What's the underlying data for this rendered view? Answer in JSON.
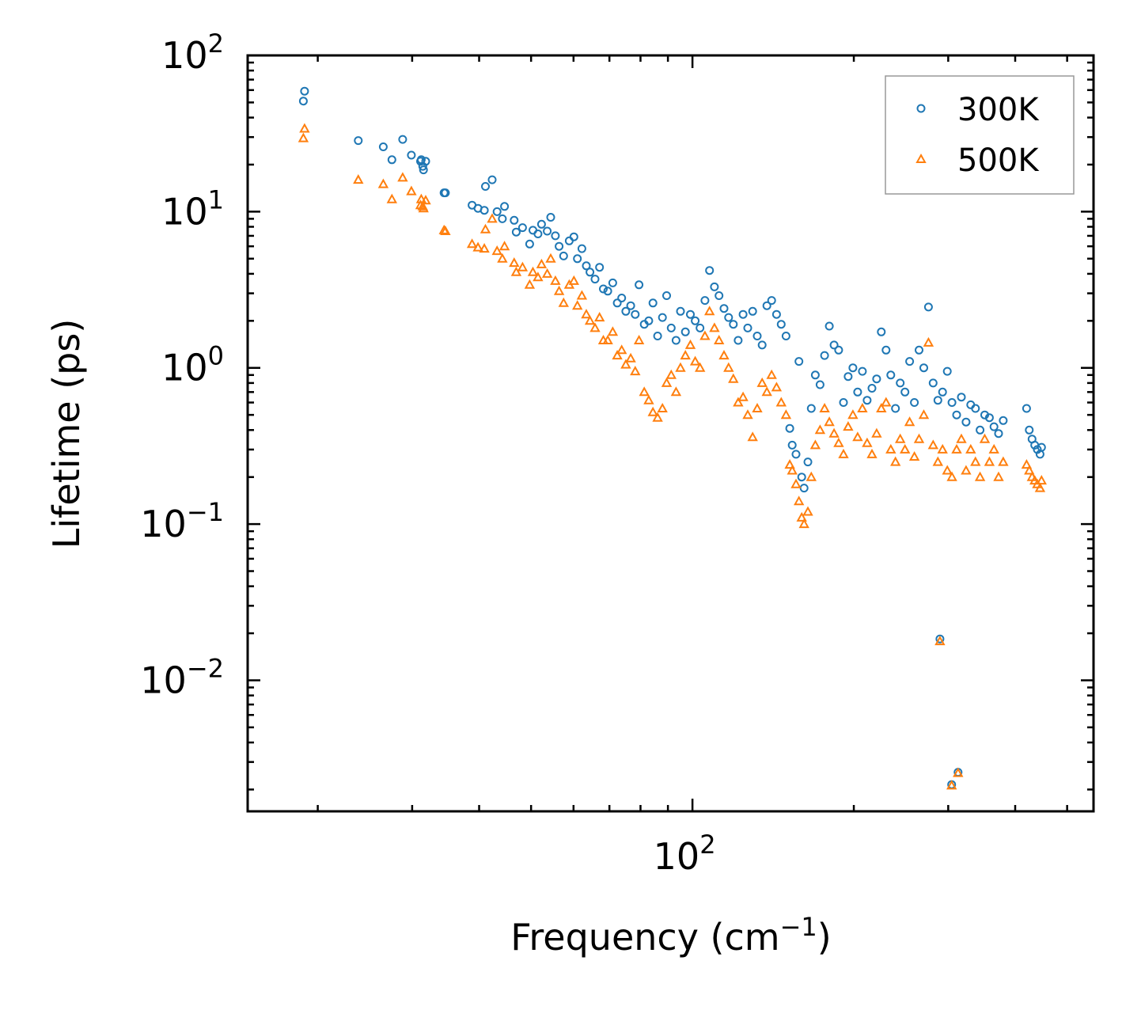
{
  "chart_data": {
    "type": "scatter",
    "xscale": "log",
    "yscale": "log",
    "xlabel": "Frequency (cm",
    "xlabel_sup": "−1",
    "xlabel_end": ")",
    "ylabel": "Lifetime (ps)",
    "xlim": [
      14.8,
      560
    ],
    "ylim": [
      0.00145,
      100
    ],
    "x_tick_labels": [
      {
        "value": 100,
        "base": "10",
        "exp": "2"
      }
    ],
    "y_tick_labels": [
      {
        "value": 100,
        "base": "10",
        "exp": "2"
      },
      {
        "value": 10,
        "base": "10",
        "exp": "1"
      },
      {
        "value": 1,
        "base": "10",
        "exp": "0"
      },
      {
        "value": 0.1,
        "base": "10",
        "exp": "−1"
      },
      {
        "value": 0.01,
        "base": "10",
        "exp": "−2"
      }
    ],
    "legend": {
      "position": "top-right"
    },
    "series": [
      {
        "name": "300K",
        "marker": "circle",
        "color": "#1f77b4",
        "points": [
          [
            18.9,
            59
          ],
          [
            18.8,
            51
          ],
          [
            23.8,
            28.5
          ],
          [
            26.5,
            26
          ],
          [
            27.5,
            21.5
          ],
          [
            28.8,
            29
          ],
          [
            29.9,
            23
          ],
          [
            31.1,
            21
          ],
          [
            31.2,
            21.5
          ],
          [
            31.4,
            19.5
          ],
          [
            31.5,
            18.5
          ],
          [
            31.8,
            21
          ],
          [
            34.4,
            13.2
          ],
          [
            34.6,
            13.2
          ],
          [
            38.8,
            11
          ],
          [
            39.8,
            10.5
          ],
          [
            40.9,
            10.2
          ],
          [
            41.1,
            14.5
          ],
          [
            42.3,
            16
          ],
          [
            43.2,
            10
          ],
          [
            44.2,
            9
          ],
          [
            44.6,
            10.8
          ],
          [
            46.5,
            8.8
          ],
          [
            46.9,
            7.4
          ],
          [
            48.2,
            7.9
          ],
          [
            49.7,
            6.2
          ],
          [
            50.4,
            7.6
          ],
          [
            51.5,
            7.2
          ],
          [
            52.3,
            8.3
          ],
          [
            53.6,
            7.5
          ],
          [
            54.4,
            9.2
          ],
          [
            55.5,
            7.0
          ],
          [
            56.4,
            6.0
          ],
          [
            57.5,
            5.2
          ],
          [
            58.9,
            6.5
          ],
          [
            60.1,
            6.9
          ],
          [
            61.0,
            5.0
          ],
          [
            62.2,
            5.8
          ],
          [
            63.4,
            4.5
          ],
          [
            64.4,
            4.1
          ],
          [
            65.8,
            3.7
          ],
          [
            67.1,
            4.4
          ],
          [
            68.2,
            3.2
          ],
          [
            69.5,
            3.1
          ],
          [
            71.0,
            3.5
          ],
          [
            72.4,
            2.6
          ],
          [
            73.8,
            2.8
          ],
          [
            75.1,
            2.3
          ],
          [
            76.7,
            2.5
          ],
          [
            78.2,
            2.2
          ],
          [
            79.5,
            3.4
          ],
          [
            81.3,
            1.9
          ],
          [
            82.9,
            2.0
          ],
          [
            84.4,
            2.6
          ],
          [
            86.1,
            1.6
          ],
          [
            87.9,
            2.1
          ],
          [
            89.5,
            2.9
          ],
          [
            91.3,
            1.8
          ],
          [
            93.2,
            1.5
          ],
          [
            95.0,
            2.3
          ],
          [
            97.0,
            1.7
          ],
          [
            99.1,
            2.2
          ],
          [
            101.2,
            2.0
          ],
          [
            103.3,
            1.8
          ],
          [
            105.5,
            2.7
          ],
          [
            107.6,
            4.2
          ],
          [
            109.9,
            3.3
          ],
          [
            112.1,
            2.9
          ],
          [
            114.5,
            2.4
          ],
          [
            116.8,
            2.1
          ],
          [
            119.2,
            1.9
          ],
          [
            121.7,
            1.5
          ],
          [
            124.3,
            2.2
          ],
          [
            126.8,
            1.8
          ],
          [
            129.5,
            2.3
          ],
          [
            132.1,
            1.6
          ],
          [
            134.9,
            1.4
          ],
          [
            137.7,
            2.5
          ],
          [
            140.5,
            2.7
          ],
          [
            143.5,
            2.2
          ],
          [
            146.4,
            1.9
          ],
          [
            149.5,
            1.6
          ],
          [
            151.9,
            0.41
          ],
          [
            153.5,
            0.32
          ],
          [
            156.0,
            0.28
          ],
          [
            158.0,
            1.1
          ],
          [
            159.9,
            0.2
          ],
          [
            161.5,
            0.17
          ],
          [
            164.2,
            0.25
          ],
          [
            166.6,
            0.55
          ],
          [
            169.5,
            0.9
          ],
          [
            173.0,
            0.78
          ],
          [
            176.4,
            1.2
          ],
          [
            180.0,
            1.85
          ],
          [
            183.7,
            1.4
          ],
          [
            187.4,
            1.3
          ],
          [
            191.3,
            0.6
          ],
          [
            195.2,
            0.88
          ],
          [
            199.2,
            1.0
          ],
          [
            203.3,
            0.7
          ],
          [
            207.5,
            0.95
          ],
          [
            211.8,
            0.62
          ],
          [
            216.2,
            0.74
          ],
          [
            220.6,
            0.85
          ],
          [
            225.1,
            1.7
          ],
          [
            229.7,
            1.3
          ],
          [
            234.4,
            0.9
          ],
          [
            239.2,
            0.55
          ],
          [
            244.1,
            0.8
          ],
          [
            249.1,
            0.7
          ],
          [
            254.2,
            1.1
          ],
          [
            259.4,
            0.6
          ],
          [
            264.7,
            1.3
          ],
          [
            270.1,
            1.0
          ],
          [
            275.6,
            2.45
          ],
          [
            281.2,
            0.8
          ],
          [
            287.0,
            0.62
          ],
          [
            292.8,
            0.7
          ],
          [
            298.8,
            0.95
          ],
          [
            304.9,
            0.6
          ],
          [
            311.1,
            0.5
          ],
          [
            317.5,
            0.65
          ],
          [
            323.9,
            0.45
          ],
          [
            330.5,
            0.58
          ],
          [
            337.2,
            0.55
          ],
          [
            344.0,
            0.4
          ],
          [
            350.9,
            0.5
          ],
          [
            358.0,
            0.48
          ],
          [
            365.2,
            0.42
          ],
          [
            372.5,
            0.38
          ],
          [
            380.0,
            0.46
          ],
          [
            420.0,
            0.55
          ],
          [
            425.0,
            0.4
          ],
          [
            430.0,
            0.35
          ],
          [
            435.0,
            0.32
          ],
          [
            440.0,
            0.3
          ],
          [
            445.0,
            0.28
          ],
          [
            448.0,
            0.31
          ],
          [
            289.5,
            0.0184
          ],
          [
            304.5,
            0.00215
          ],
          [
            313.0,
            0.00258
          ]
        ]
      },
      {
        "name": "500K",
        "marker": "triangle",
        "color": "#ff7f0e",
        "points": [
          [
            18.9,
            34
          ],
          [
            18.8,
            29.5
          ],
          [
            23.8,
            16
          ],
          [
            26.5,
            15
          ],
          [
            27.5,
            12
          ],
          [
            28.8,
            16.5
          ],
          [
            29.9,
            13.5
          ],
          [
            31.1,
            11
          ],
          [
            31.2,
            12
          ],
          [
            31.4,
            10.8
          ],
          [
            31.5,
            10.5
          ],
          [
            31.8,
            11.8
          ],
          [
            34.4,
            7.6
          ],
          [
            34.6,
            7.5
          ],
          [
            38.8,
            6.2
          ],
          [
            39.8,
            5.9
          ],
          [
            40.9,
            5.8
          ],
          [
            41.1,
            7.7
          ],
          [
            42.3,
            9.0
          ],
          [
            43.2,
            5.6
          ],
          [
            44.2,
            5.0
          ],
          [
            44.6,
            6.0
          ],
          [
            46.5,
            4.7
          ],
          [
            46.9,
            4.1
          ],
          [
            48.2,
            4.4
          ],
          [
            49.7,
            3.4
          ],
          [
            50.4,
            4.1
          ],
          [
            51.5,
            3.8
          ],
          [
            52.3,
            4.6
          ],
          [
            53.6,
            4.0
          ],
          [
            54.4,
            5.0
          ],
          [
            55.5,
            3.6
          ],
          [
            56.4,
            3.1
          ],
          [
            57.5,
            2.6
          ],
          [
            58.9,
            3.4
          ],
          [
            60.1,
            3.6
          ],
          [
            61.0,
            2.5
          ],
          [
            62.2,
            2.9
          ],
          [
            63.4,
            2.2
          ],
          [
            64.4,
            2.0
          ],
          [
            65.8,
            1.8
          ],
          [
            67.1,
            2.1
          ],
          [
            68.2,
            1.5
          ],
          [
            69.5,
            1.5
          ],
          [
            71.0,
            1.7
          ],
          [
            72.4,
            1.2
          ],
          [
            73.8,
            1.3
          ],
          [
            75.1,
            1.05
          ],
          [
            76.7,
            1.15
          ],
          [
            78.2,
            0.95
          ],
          [
            79.5,
            1.5
          ],
          [
            81.3,
            0.7
          ],
          [
            82.9,
            0.62
          ],
          [
            84.4,
            0.52
          ],
          [
            86.1,
            0.48
          ],
          [
            87.9,
            0.55
          ],
          [
            89.5,
            0.8
          ],
          [
            91.3,
            0.9
          ],
          [
            93.2,
            0.7
          ],
          [
            95.0,
            1.0
          ],
          [
            97.0,
            1.2
          ],
          [
            99.1,
            1.4
          ],
          [
            101.2,
            1.1
          ],
          [
            103.3,
            1.0
          ],
          [
            105.5,
            1.6
          ],
          [
            107.6,
            2.3
          ],
          [
            109.9,
            1.8
          ],
          [
            112.1,
            1.5
          ],
          [
            114.5,
            1.2
          ],
          [
            116.8,
            1.0
          ],
          [
            119.2,
            0.85
          ],
          [
            121.7,
            0.6
          ],
          [
            124.3,
            0.65
          ],
          [
            126.8,
            0.5
          ],
          [
            129.5,
            0.36
          ],
          [
            132.1,
            0.55
          ],
          [
            134.9,
            0.8
          ],
          [
            137.7,
            0.7
          ],
          [
            140.5,
            0.9
          ],
          [
            143.5,
            0.75
          ],
          [
            146.4,
            0.6
          ],
          [
            149.5,
            0.5
          ],
          [
            151.9,
            0.24
          ],
          [
            153.5,
            0.22
          ],
          [
            156.0,
            0.18
          ],
          [
            158.0,
            0.14
          ],
          [
            159.9,
            0.11
          ],
          [
            161.5,
            0.1
          ],
          [
            164.2,
            0.12
          ],
          [
            166.6,
            0.2
          ],
          [
            169.5,
            0.32
          ],
          [
            173.0,
            0.4
          ],
          [
            176.4,
            0.55
          ],
          [
            180.0,
            0.45
          ],
          [
            183.7,
            0.38
          ],
          [
            187.4,
            0.33
          ],
          [
            191.3,
            0.28
          ],
          [
            195.2,
            0.42
          ],
          [
            199.2,
            0.5
          ],
          [
            203.3,
            0.36
          ],
          [
            207.5,
            0.55
          ],
          [
            211.8,
            0.33
          ],
          [
            216.2,
            0.28
          ],
          [
            220.6,
            0.38
          ],
          [
            225.1,
            0.55
          ],
          [
            229.7,
            0.6
          ],
          [
            234.4,
            0.3
          ],
          [
            239.2,
            0.25
          ],
          [
            244.1,
            0.35
          ],
          [
            249.1,
            0.3
          ],
          [
            254.2,
            0.45
          ],
          [
            259.4,
            0.27
          ],
          [
            264.7,
            0.35
          ],
          [
            270.1,
            0.5
          ],
          [
            275.6,
            1.45
          ],
          [
            281.2,
            0.32
          ],
          [
            287.0,
            0.25
          ],
          [
            292.8,
            0.3
          ],
          [
            298.8,
            0.22
          ],
          [
            304.9,
            0.2
          ],
          [
            311.1,
            0.3
          ],
          [
            317.5,
            0.35
          ],
          [
            323.9,
            0.22
          ],
          [
            330.5,
            0.3
          ],
          [
            337.2,
            0.25
          ],
          [
            344.0,
            0.2
          ],
          [
            350.9,
            0.35
          ],
          [
            358.0,
            0.25
          ],
          [
            365.2,
            0.3
          ],
          [
            372.5,
            0.2
          ],
          [
            380.0,
            0.25
          ],
          [
            420.0,
            0.24
          ],
          [
            425.0,
            0.22
          ],
          [
            430.0,
            0.2
          ],
          [
            435.0,
            0.19
          ],
          [
            440.0,
            0.18
          ],
          [
            445.0,
            0.17
          ],
          [
            448.0,
            0.19
          ],
          [
            289.5,
            0.0178
          ],
          [
            304.5,
            0.00212
          ],
          [
            313.0,
            0.00255
          ]
        ]
      }
    ]
  }
}
